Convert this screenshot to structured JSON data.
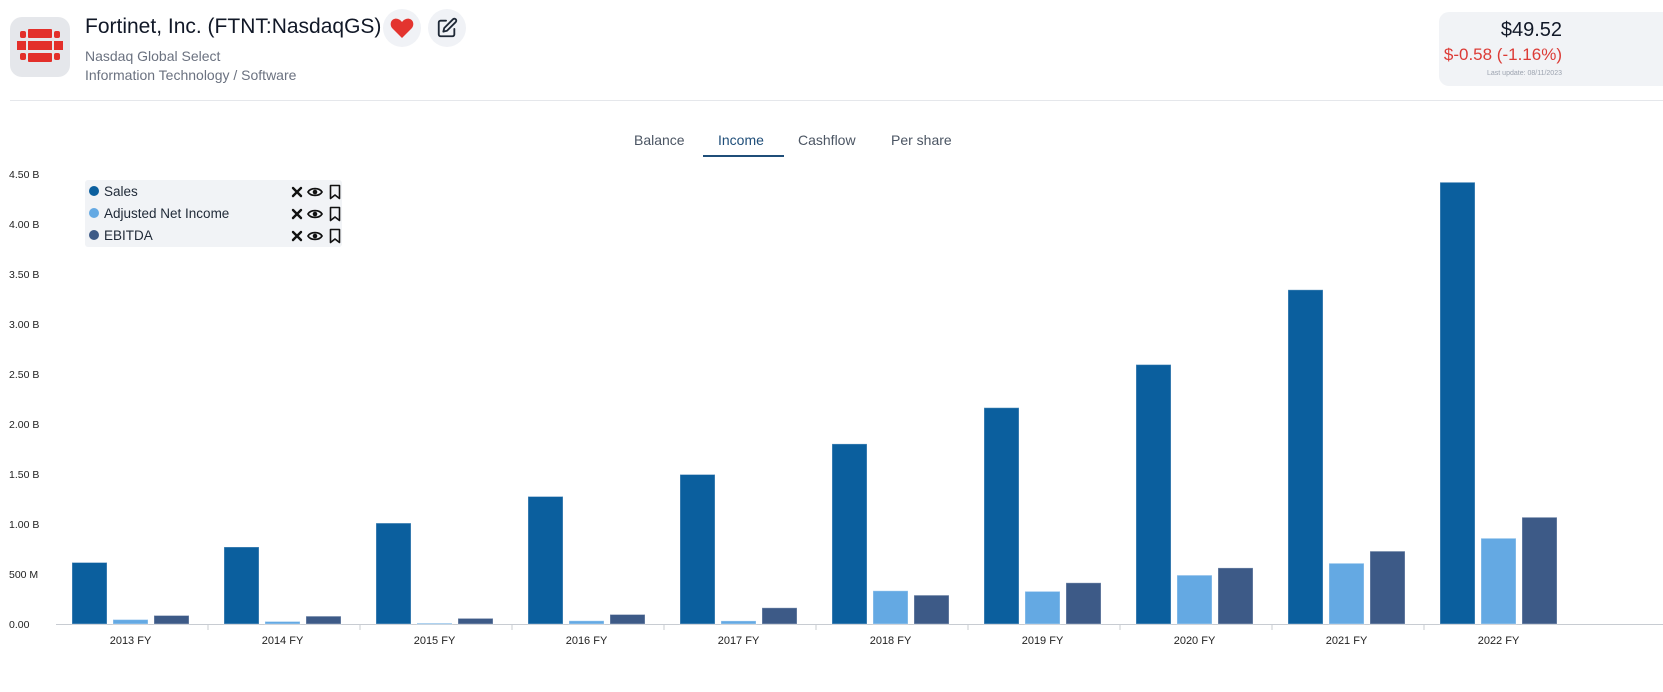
{
  "header": {
    "company_name": "Fortinet, Inc. (FTNT:NasdaqGS)",
    "exchange": "Nasdaq Global Select",
    "sector": "Information Technology / Software",
    "favorite_icon": "heart-icon",
    "edit_icon": "edit-icon",
    "logo_icon": "fortinet-logo-icon"
  },
  "quote": {
    "price": "$49.52",
    "change": "$-0.58 (-1.16%)",
    "last_update": "Last update: 08/11/2023"
  },
  "tabs": [
    {
      "label": "Balance",
      "active": false
    },
    {
      "label": "Income",
      "active": true
    },
    {
      "label": "Cashflow",
      "active": false
    },
    {
      "label": "Per share",
      "active": false
    }
  ],
  "legend": {
    "items": [
      {
        "label": "Sales",
        "color": "#0b5f9e"
      },
      {
        "label": "Adjusted Net Income",
        "color": "#64a9e3"
      },
      {
        "label": "EBITDA",
        "color": "#3d5a87"
      }
    ],
    "remove_icon": "close-icon",
    "visibility_icon": "eye-icon",
    "bookmark_icon": "bookmark-icon"
  },
  "colors": {
    "accent": "#1f4e79",
    "negative": "#dc3b36",
    "logo_red": "#e32f2a"
  },
  "chart_data": {
    "type": "bar",
    "categories": [
      "2013 FY",
      "2014 FY",
      "2015 FY",
      "2016 FY",
      "2017 FY",
      "2018 FY",
      "2019 FY",
      "2020 FY",
      "2021 FY",
      "2022 FY"
    ],
    "series": [
      {
        "name": "Sales",
        "values": [
          0.615,
          0.77,
          1.009,
          1.275,
          1.495,
          1.801,
          2.163,
          2.594,
          3.342,
          4.417
        ],
        "color": "#0b5f9e"
      },
      {
        "name": "Adjusted Net Income",
        "values": [
          0.044,
          0.025,
          0.008,
          0.032,
          0.031,
          0.332,
          0.326,
          0.488,
          0.607,
          0.857
        ],
        "color": "#64a9e3"
      },
      {
        "name": "EBITDA",
        "values": [
          0.085,
          0.078,
          0.056,
          0.095,
          0.162,
          0.288,
          0.412,
          0.561,
          0.728,
          1.067
        ],
        "color": "#3d5a87"
      }
    ],
    "unit": "B",
    "ylim": [
      0,
      4.5
    ],
    "yticks": [
      "0.00",
      "500 M",
      "1.00 B",
      "1.50 B",
      "2.00 B",
      "2.50 B",
      "3.00 B",
      "3.50 B",
      "4.00 B",
      "4.50 B"
    ],
    "grid": false,
    "legend_position": "top-left"
  }
}
